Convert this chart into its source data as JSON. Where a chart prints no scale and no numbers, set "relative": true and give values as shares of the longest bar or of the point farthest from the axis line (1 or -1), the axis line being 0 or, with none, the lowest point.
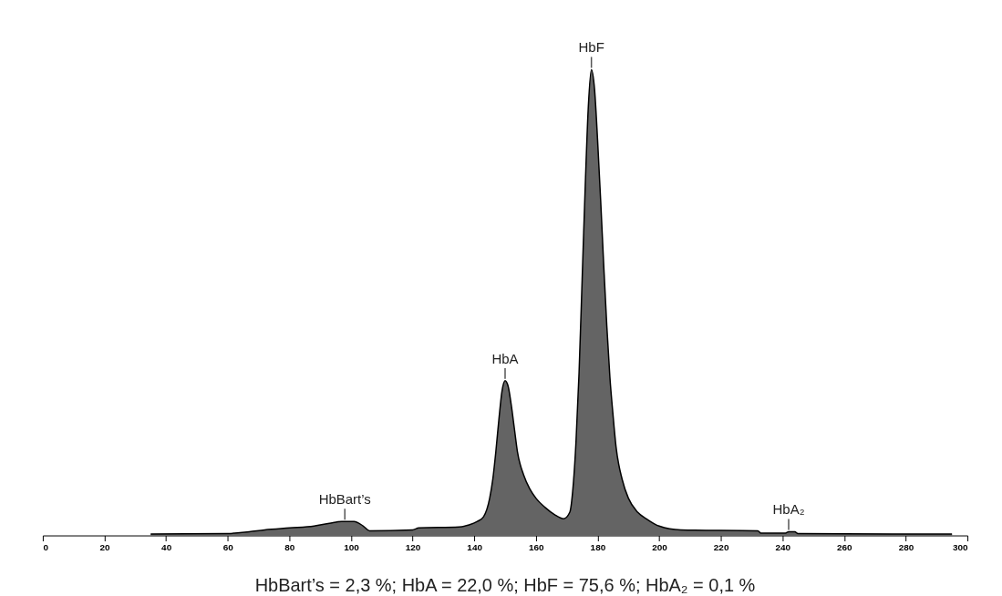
{
  "chart_data": {
    "type": "area",
    "relative": true,
    "x": [
      35,
      60,
      67,
      72,
      80,
      88,
      93,
      97,
      101,
      104,
      106,
      120,
      122,
      135,
      138,
      141,
      143,
      145,
      146,
      147,
      148,
      149,
      150,
      151,
      152,
      153,
      154,
      156,
      158,
      160,
      163,
      166,
      169,
      171,
      172,
      173,
      174,
      175,
      176,
      177,
      178,
      179,
      180,
      181,
      182,
      183,
      184,
      185,
      186,
      188,
      190,
      193,
      196,
      200,
      207,
      232,
      233,
      241,
      242,
      244,
      245,
      295
    ],
    "series": [
      {
        "color": "#222222",
        "values": [
          0.003,
          0.004,
          0.008,
          0.012,
          0.016,
          0.02,
          0.026,
          0.03,
          0.03,
          0.02,
          0.01,
          0.012,
          0.016,
          0.018,
          0.022,
          0.03,
          0.04,
          0.08,
          0.12,
          0.18,
          0.25,
          0.31,
          0.332,
          0.32,
          0.28,
          0.23,
          0.18,
          0.13,
          0.1,
          0.08,
          0.06,
          0.045,
          0.036,
          0.05,
          0.1,
          0.2,
          0.35,
          0.55,
          0.75,
          0.92,
          1.0,
          0.96,
          0.85,
          0.72,
          0.58,
          0.45,
          0.34,
          0.26,
          0.19,
          0.12,
          0.08,
          0.05,
          0.035,
          0.02,
          0.012,
          0.01,
          0.005,
          0.005,
          0.008,
          0.008,
          0.004,
          0.003
        ]
      }
    ],
    "xlim": [
      0,
      300
    ],
    "xticks": [
      0,
      20,
      40,
      60,
      80,
      100,
      120,
      140,
      160,
      180,
      200,
      220,
      240,
      260,
      280,
      300
    ],
    "grid": false,
    "annotations": [
      {
        "text": "HbBart’s",
        "x": 98,
        "y": 0.03
      },
      {
        "text": "HbA",
        "x": 150,
        "y": 0.332
      },
      {
        "text": "HbF",
        "x": 178,
        "y": 1.0
      },
      {
        "text": "HbA₂",
        "x": 242,
        "y": 0.008
      },
      "HbBart’s = 2,3 %; HbA = 22,0 %; HbF = 75,6 %; HbA₂ = 0,1 %"
    ]
  }
}
